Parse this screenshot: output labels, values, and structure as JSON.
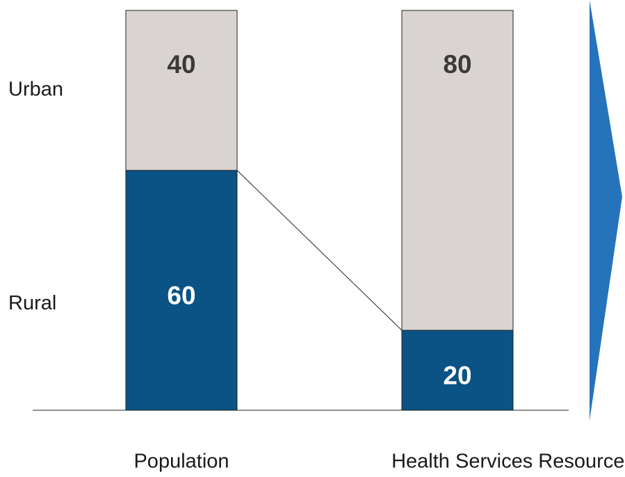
{
  "chart_data": {
    "type": "stacked-bar",
    "categories": [
      "Population",
      "Health Services Resources"
    ],
    "series": [
      {
        "name": "Rural",
        "color": "#0b5384",
        "values": [
          60,
          20
        ]
      },
      {
        "name": "Urban",
        "color": "#d9d4d1",
        "values": [
          40,
          80
        ]
      }
    ],
    "ylim": [
      0,
      100
    ]
  }
}
